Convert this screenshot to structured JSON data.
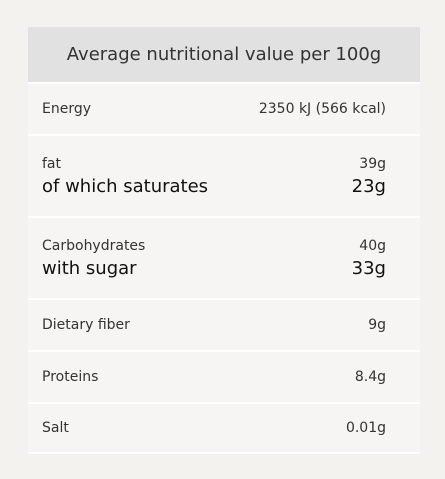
{
  "header": {
    "title": "Average nutritional value per 100g"
  },
  "table": {
    "rows": [
      {
        "label": "Energy",
        "value": "2350 kJ (566 kcal)"
      },
      {
        "label": "fat",
        "value": "39g",
        "sub_label": "of which saturates",
        "sub_value": "23g"
      },
      {
        "label": "Carbohydrates",
        "value": "40g",
        "sub_label": "with sugar",
        "sub_value": "33g"
      },
      {
        "label": "Dietary fiber",
        "value": "9g"
      },
      {
        "label": "Proteins",
        "value": "8.4g"
      },
      {
        "label": "Salt",
        "value": "0.01g"
      }
    ]
  }
}
